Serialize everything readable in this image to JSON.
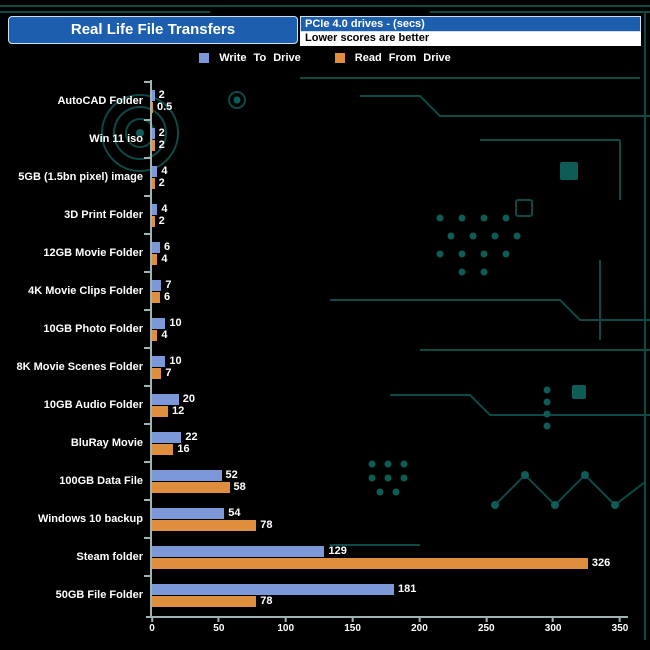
{
  "header": {
    "title": "Real Life File Transfers",
    "drive_type": "PCIe 4.0 drives - (secs)",
    "note": "Lower scores are better"
  },
  "legend": {
    "write": "Write To Drive",
    "read": "Read From Drive"
  },
  "colors": {
    "background": "#000000",
    "title_bg": "#1d5fae",
    "write_bar": "#7d98d8",
    "read_bar": "#df8e3e",
    "axis": "#9fb3b3",
    "circuit_trace": "#0d4a46",
    "label_text": "#ffffff"
  },
  "chart_data": {
    "type": "bar",
    "orientation": "horizontal",
    "title": "Real Life File Transfers",
    "subtitle": "PCIe 4.0 drives - (secs)",
    "note": "Lower scores are better",
    "categories": [
      "AutoCAD Folder",
      "Win 11 iso",
      "5GB (1.5bn pixel) image",
      "3D Print Folder",
      "12GB Movie Folder",
      "4K Movie Clips Folder",
      "10GB Photo Folder",
      "8K Movie Scenes Folder",
      "10GB Audio Folder",
      "BluRay Movie",
      "100GB Data File",
      "Windows 10 backup",
      "Steam folder",
      "50GB File Folder"
    ],
    "series": [
      {
        "name": "Write To Drive",
        "color": "#7d98d8",
        "values": [
          2,
          2,
          4,
          4,
          6,
          7,
          10,
          10,
          20,
          22,
          52,
          54,
          129,
          181
        ]
      },
      {
        "name": "Read From Drive",
        "color": "#df8e3e",
        "values": [
          0.5,
          2,
          2,
          2,
          4,
          6,
          4,
          7,
          12,
          16,
          58,
          78,
          326,
          78
        ]
      }
    ],
    "xlim": [
      0,
      350
    ],
    "x_ticks": [
      0,
      50,
      100,
      150,
      200,
      250,
      300,
      350
    ],
    "lower_is_better": true,
    "legend_position": "top",
    "grid": false
  }
}
